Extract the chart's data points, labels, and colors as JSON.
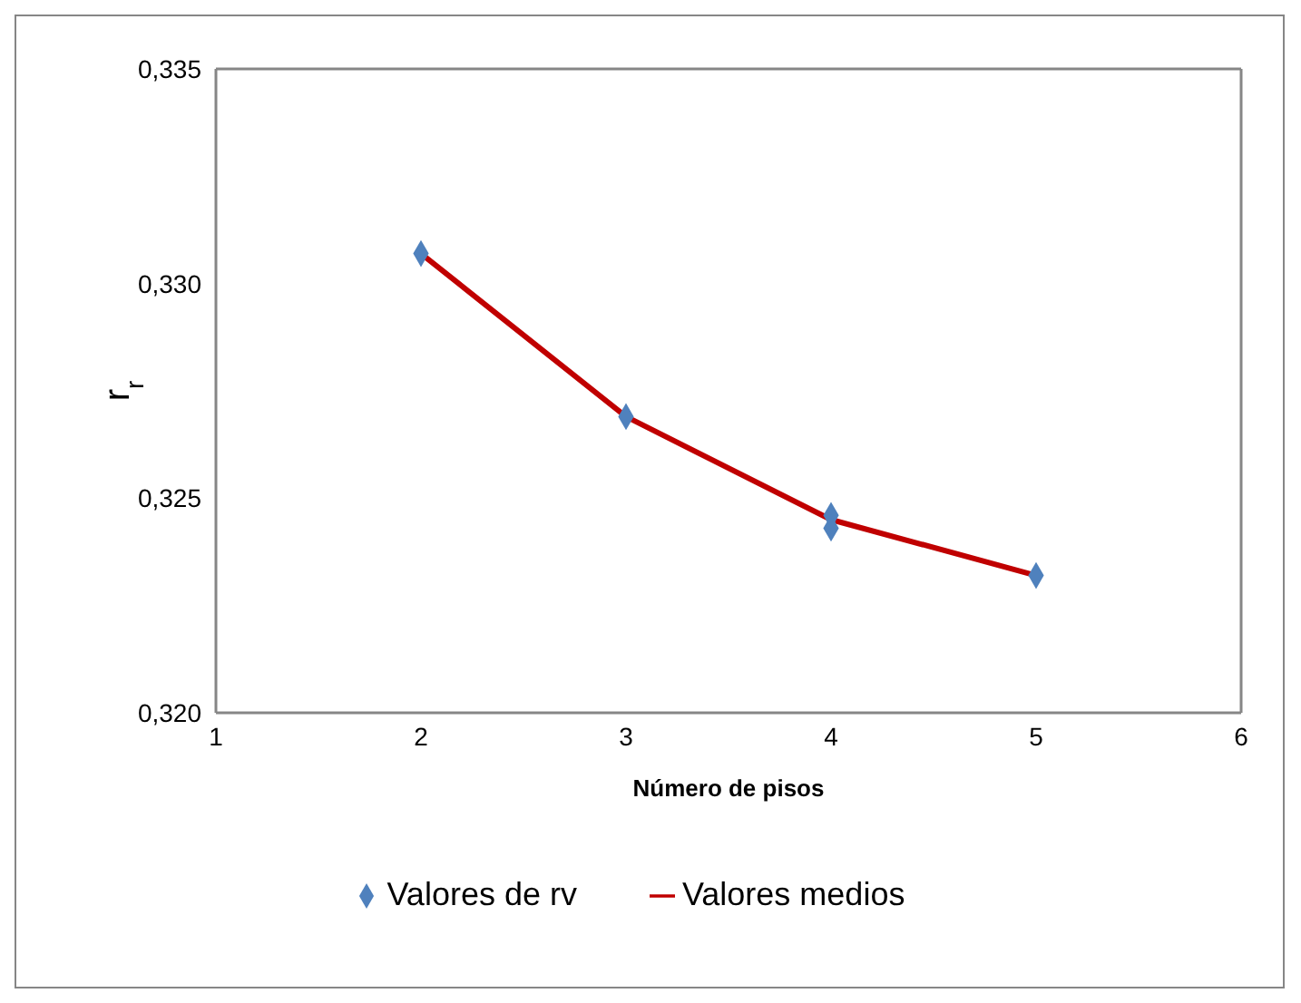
{
  "chart_data": {
    "type": "scatter",
    "xlabel": "Número de pisos",
    "ylabel": "r$_{r}$",
    "xlim": [
      1,
      6
    ],
    "xticks": [
      1,
      2,
      3,
      4,
      5,
      6
    ],
    "ylim": [
      0.32,
      0.335
    ],
    "yticks": [
      {
        "value": 0.32,
        "label": "0,320"
      },
      {
        "value": 0.325,
        "label": "0,325"
      },
      {
        "value": 0.33,
        "label": "0,330"
      },
      {
        "value": 0.335,
        "label": "0,335"
      }
    ],
    "legend": "bottom",
    "series": [
      {
        "name": "Valores de rv",
        "marker": "diamond",
        "color": "#4f81bd",
        "x": [
          2,
          3,
          4,
          4,
          5
        ],
        "values": [
          0.3307,
          0.3269,
          0.3246,
          0.3243,
          0.3232
        ]
      },
      {
        "name": "Valores medios",
        "type": "line",
        "marker": "none",
        "line_style": "solid",
        "color": "#c00000",
        "x": [
          2,
          3,
          4,
          5
        ],
        "values": [
          0.3307,
          0.3269,
          0.3245,
          0.3232
        ]
      }
    ]
  }
}
